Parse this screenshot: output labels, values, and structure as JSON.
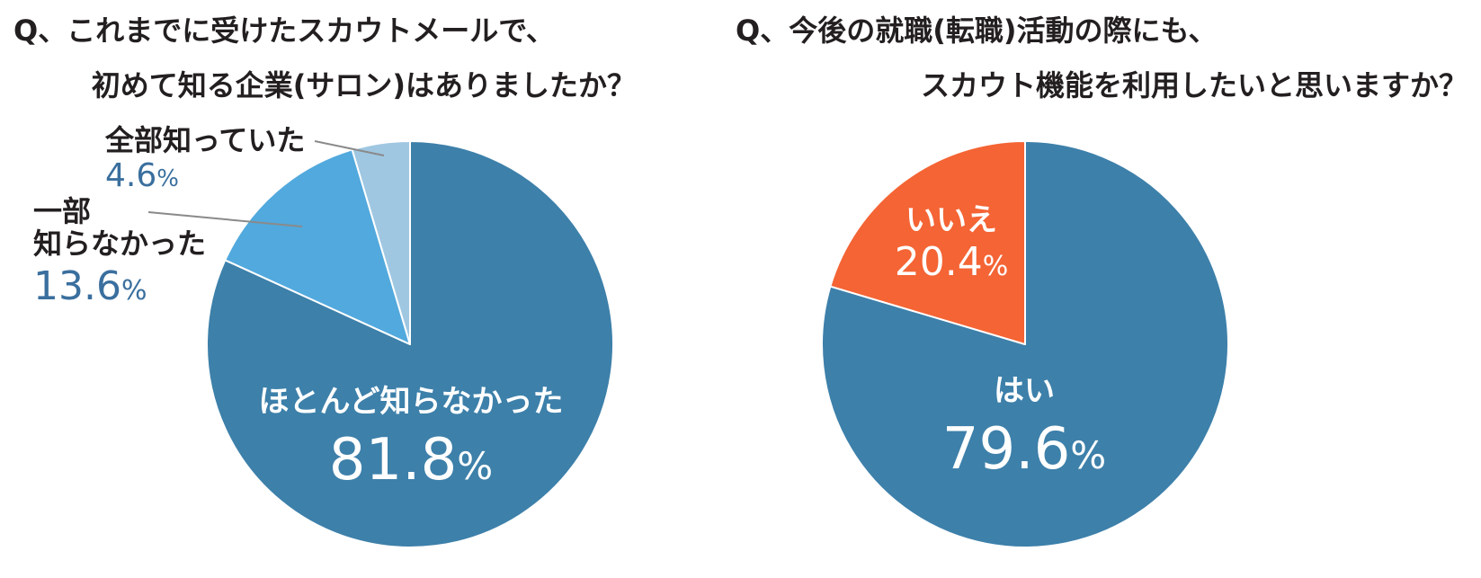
{
  "chart_data": [
    {
      "type": "pie",
      "title_lines": [
        "Q、これまでに受けたスカウトメールで、",
        "初めて知る企業(サロン)はありましたか？"
      ],
      "slices": [
        {
          "label": "ほとんど知らなかった",
          "value": 81.8,
          "value_text": "81.8",
          "unit": "%",
          "color": "#3d80aa"
        },
        {
          "label_lines": [
            "一部",
            "知らなかった"
          ],
          "value": 13.6,
          "value_text": "13.6",
          "unit": "%",
          "color": "#52a9dd"
        },
        {
          "label": "全部知っていた",
          "value": 4.6,
          "value_text": "4.6",
          "unit": "%",
          "color": "#9fc7e2"
        }
      ]
    },
    {
      "type": "pie",
      "title_lines": [
        "Q、今後の就職(転職)活動の際にも、",
        "スカウト機能を利用したいと思いますか？"
      ],
      "slices": [
        {
          "label": "はい",
          "value": 79.6,
          "value_text": "79.6",
          "unit": "%",
          "color": "#3d80aa"
        },
        {
          "label": "いいえ",
          "value": 20.4,
          "value_text": "20.4",
          "unit": "%",
          "color": "#f46434"
        }
      ]
    }
  ]
}
